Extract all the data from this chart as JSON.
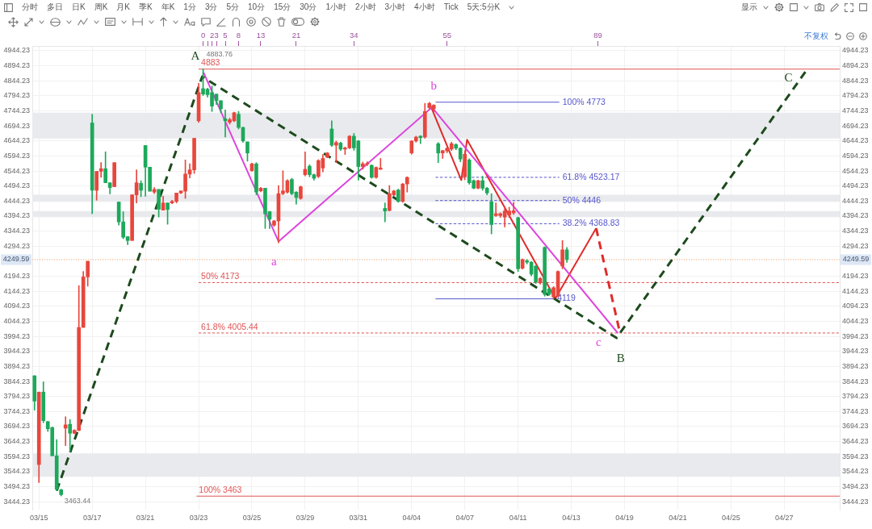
{
  "chart_data": {
    "type": "candlestick",
    "categories": [
      null,
      "03/15",
      null,
      null,
      null,
      null,
      null,
      null,
      null,
      null,
      null,
      null,
      null,
      "03/17",
      null,
      null,
      null,
      null,
      null,
      null,
      null,
      null,
      null,
      null,
      null,
      "03/21",
      null,
      null,
      null,
      null,
      null,
      null,
      null,
      null,
      null,
      null,
      null,
      "03/23",
      null,
      null,
      null,
      null,
      null,
      null,
      null,
      null,
      null,
      null,
      null,
      "03/25",
      null,
      null,
      null,
      null,
      null,
      null,
      null,
      null,
      null,
      null,
      null,
      "03/29",
      null,
      null,
      null,
      null,
      null,
      null,
      null,
      null,
      null,
      null,
      null,
      "03/31",
      null,
      null,
      null,
      null,
      null,
      null,
      null,
      null,
      null,
      null,
      null,
      "04/04",
      null,
      null,
      null,
      null,
      null,
      null,
      null,
      null,
      null,
      null,
      null,
      "04/07",
      null,
      null,
      null,
      null,
      null,
      null,
      null,
      null,
      null,
      null,
      null,
      "04/11",
      null,
      null,
      null,
      null,
      null,
      null,
      null,
      null,
      null,
      null,
      null,
      "04/13",
      null,
      null,
      null,
      null,
      null,
      null,
      null,
      null,
      null,
      null,
      null,
      "04/19",
      null,
      null,
      null,
      null,
      null,
      null,
      null,
      null,
      null,
      null,
      null,
      "04/21",
      null,
      null,
      null,
      null,
      null,
      null,
      null,
      null,
      null,
      null,
      null,
      "04/25",
      null,
      null,
      null,
      null,
      null,
      null,
      null,
      null,
      null,
      null,
      null,
      "04/27",
      null,
      null,
      null,
      null,
      null,
      null,
      null,
      null,
      null,
      null,
      null,
      null
    ],
    "ohlc": [
      [
        3863,
        3864,
        3749,
        3779
      ],
      [
        3568,
        3809,
        3508,
        3809
      ],
      [
        3809,
        3843,
        3707,
        3714
      ],
      [
        3711,
        3711,
        3678,
        3687
      ],
      [
        3691,
        3693,
        3597,
        3597
      ],
      [
        3597,
        3651,
        3481,
        3486
      ],
      [
        3484,
        3486,
        3463.44,
        3468
      ],
      [
        3689,
        3727,
        3631,
        3700
      ],
      [
        3702,
        3718,
        3611,
        3672
      ],
      [
        3672,
        3684,
        3670,
        3682
      ],
      [
        3682,
        4163,
        3680,
        4024
      ],
      [
        4024,
        4210,
        4024,
        4192
      ],
      [
        4192,
        4244,
        4161,
        4244
      ],
      [
        4704,
        4733,
        4402,
        4480
      ],
      [
        4480,
        4543,
        4447,
        4543
      ],
      [
        4543,
        4572,
        4523,
        4552
      ],
      [
        4552,
        4608,
        4505,
        4505
      ],
      [
        4505,
        4505,
        4468,
        4489
      ],
      [
        4492,
        4572,
        4492,
        4572
      ],
      [
        4441,
        4441,
        4364,
        4375
      ],
      [
        4375,
        4409,
        4319,
        4324
      ],
      [
        4326,
        4326,
        4299,
        4313
      ],
      [
        4313,
        4465,
        4313,
        4465
      ],
      [
        4465,
        4548,
        4438,
        4505
      ],
      [
        4503,
        4512,
        4459,
        4480
      ],
      [
        4629,
        4629,
        4460,
        4557
      ],
      [
        4557,
        4557,
        4477,
        4477
      ],
      [
        4474,
        4489,
        4469,
        4483
      ],
      [
        4483,
        4483,
        4391,
        4417
      ],
      [
        4414,
        4460,
        4414,
        4438
      ],
      [
        4438,
        4438,
        4367,
        4416
      ],
      [
        4438,
        4447,
        4435,
        4443
      ],
      [
        4443,
        4471,
        4438,
        4471
      ],
      [
        4471,
        4478,
        4469,
        4478
      ],
      [
        4477,
        4581,
        4453,
        4534
      ],
      [
        4534,
        4568,
        4521,
        4548
      ],
      [
        4548,
        4653,
        4536,
        4653
      ],
      [
        4711,
        4836,
        4706,
        4805
      ],
      [
        4818,
        4883.76,
        4795,
        4800
      ],
      [
        4816,
        4820,
        4790,
        4798
      ],
      [
        4805,
        4827,
        4742,
        4760
      ],
      [
        4800,
        4800,
        4765,
        4778
      ],
      [
        4778,
        4778,
        4738,
        4751
      ],
      [
        4718,
        4747,
        4657,
        4711
      ],
      [
        4706,
        4720,
        4700,
        4715
      ],
      [
        4711,
        4740,
        4708,
        4738
      ],
      [
        4733,
        4742,
        4684,
        4689
      ],
      [
        4689,
        4690,
        4640,
        4644
      ],
      [
        4641,
        4641,
        4577,
        4604
      ],
      [
        4545,
        4570,
        4543,
        4568
      ],
      [
        4568,
        4572,
        4465,
        4474
      ],
      [
        4478,
        4490,
        4475,
        4487
      ],
      [
        4487,
        4487,
        4353,
        4402
      ],
      [
        4409,
        4410,
        4353,
        4384
      ],
      [
        4364,
        4380,
        4360,
        4378
      ],
      [
        4378,
        4496,
        4305,
        4469
      ],
      [
        4469,
        4545,
        4465,
        4478
      ],
      [
        4474,
        4515,
        4470,
        4512
      ],
      [
        4516,
        4520,
        4465,
        4469
      ],
      [
        4474,
        4476,
        4434,
        4456
      ],
      [
        4453,
        4494,
        4450,
        4492
      ],
      [
        4532,
        4608,
        4528,
        4550
      ],
      [
        4560,
        4565,
        4525,
        4532
      ],
      [
        4532,
        4534,
        4514,
        4520
      ],
      [
        4526,
        4582,
        4522,
        4579
      ],
      [
        4554,
        4599,
        4541,
        4586
      ],
      [
        4590,
        4606,
        4588,
        4604
      ],
      [
        4684,
        4711,
        4626,
        4630
      ],
      [
        4630,
        4644,
        4572,
        4639
      ],
      [
        4637,
        4640,
        4612,
        4617
      ],
      [
        4617,
        4624,
        4599,
        4621
      ],
      [
        4621,
        4662,
        4618,
        4660
      ],
      [
        4660,
        4669,
        4613,
        4621
      ],
      [
        4644,
        4646,
        4514,
        4559
      ],
      [
        4559,
        4574,
        4550,
        4568
      ],
      [
        4567,
        4575,
        4562,
        4569
      ],
      [
        4563,
        4565,
        4520,
        4523
      ],
      [
        4523,
        4558,
        4520,
        4556
      ],
      [
        4550,
        4586,
        4549,
        4554
      ],
      [
        4420,
        4438,
        4375,
        4411
      ],
      [
        4413,
        4496,
        4411,
        4469
      ],
      [
        4465,
        4480,
        4462,
        4478
      ],
      [
        4481,
        4484,
        4440,
        4443
      ],
      [
        4443,
        4503,
        4440,
        4501
      ],
      [
        4501,
        4525,
        4474,
        4523
      ],
      [
        4604,
        4645,
        4600,
        4644
      ],
      [
        4644,
        4660,
        4640,
        4657
      ],
      [
        4660,
        4662,
        4635,
        4655
      ],
      [
        4657,
        4769,
        4653,
        4742
      ],
      [
        4755,
        4773,
        4750,
        4769
      ],
      [
        4751,
        4765,
        4740,
        4763
      ],
      [
        4635,
        4639,
        4572,
        4604
      ],
      [
        4604,
        4613,
        4586,
        4612
      ],
      [
        4611,
        4622,
        4605,
        4620
      ],
      [
        4617,
        4640,
        4612,
        4635
      ],
      [
        4632,
        4635,
        4615,
        4620
      ],
      [
        4620,
        4622,
        4575,
        4584
      ],
      [
        4525,
        4610,
        4515,
        4600
      ],
      [
        4581,
        4585,
        4500,
        4505
      ],
      [
        4512,
        4515,
        4485,
        4487
      ],
      [
        4487,
        4514,
        4485,
        4512
      ],
      [
        4512,
        4527,
        4480,
        4487
      ],
      [
        4487,
        4490,
        4465,
        4471
      ],
      [
        4442,
        4469,
        4335,
        4366
      ],
      [
        4396,
        4438,
        4393,
        4402
      ],
      [
        4396,
        4405,
        4390,
        4402
      ],
      [
        4391,
        4424,
        4358,
        4411
      ],
      [
        4398,
        4424,
        4390,
        4411
      ],
      [
        4405,
        4440,
        4400,
        4412
      ],
      [
        4389,
        4391,
        4210,
        4219
      ],
      [
        4221,
        4252,
        4218,
        4250
      ],
      [
        4246,
        4250,
        4235,
        4241
      ],
      [
        4241,
        4243,
        4195,
        4201
      ],
      [
        4228,
        4230,
        4170,
        4174
      ],
      [
        4172,
        4190,
        4168,
        4187
      ],
      [
        4290,
        4292,
        4128,
        4134
      ],
      [
        4152,
        4155,
        4130,
        4134
      ],
      [
        4125,
        4160,
        4119,
        4156
      ],
      [
        4129,
        4212,
        4125,
        4210
      ],
      [
        4228,
        4313,
        4219,
        4282
      ],
      [
        4282,
        4290,
        4240,
        4249.59
      ],
      null,
      null,
      null,
      null,
      null,
      null,
      null,
      null,
      null,
      null,
      null,
      null,
      null,
      null,
      null,
      null,
      null,
      null,
      null,
      null,
      null,
      null,
      null,
      null,
      null,
      null,
      null,
      null,
      null,
      null,
      null,
      null,
      null,
      null,
      null,
      null,
      null,
      null,
      null,
      null,
      null,
      null,
      null,
      null,
      null,
      null,
      null,
      null,
      null,
      null,
      null,
      null,
      null,
      null,
      null,
      null,
      null,
      null,
      null,
      null,
      null
    ],
    "colors": [
      "#1da85b",
      "#e8463d",
      "#1da85b",
      "#1da85b",
      "#1da85b",
      "#1da85b",
      "#1da85b",
      "#e8463d",
      "#1da85b",
      "#e8463d",
      "#e8463d",
      "#e8463d",
      "#e8463d",
      "#1da85b",
      "#e8463d",
      "#e8463d",
      "#1da85b",
      "#1da85b",
      "#e8463d",
      "#1da85b",
      "#1da85b",
      "#1da85b",
      "#e8463d",
      "#e8463d",
      "#1da85b",
      "#1da85b",
      "#1da85b",
      "#e8463d",
      "#1da85b",
      "#e8463d",
      "#1da85b",
      "#e8463d",
      "#e8463d",
      "#e8463d",
      "#e8463d",
      "#e8463d",
      "#e8463d",
      "#e8463d",
      "#1da85b",
      "#1da85b",
      "#1da85b",
      "#1da85b",
      "#1da85b",
      "#1da85b",
      "#e8463d",
      "#e8463d",
      "#1da85b",
      "#1da85b",
      "#1da85b",
      "#e8463d",
      "#1da85b",
      "#e8463d",
      "#1da85b",
      "#1da85b",
      "#e8463d",
      "#e8463d",
      "#e8463d",
      "#e8463d",
      "#1da85b",
      "#1da85b",
      "#e8463d",
      "#e8463d",
      "#1da85b",
      "#1da85b",
      "#e8463d",
      "#e8463d",
      "#e8463d",
      "#1da85b",
      "#e8463d",
      "#1da85b",
      "#e8463d",
      "#e8463d",
      "#1da85b",
      "#1da85b",
      "#e8463d",
      "#e8463d",
      "#1da85b",
      "#e8463d",
      "#e8463d",
      "#1da85b",
      "#e8463d",
      "#e8463d",
      "#1da85b",
      "#e8463d",
      "#e8463d",
      "#e8463d",
      "#e8463d",
      "#1da85b",
      "#e8463d",
      "#e8463d",
      "#e8463d",
      "#1da85b",
      "#e8463d",
      "#e8463d",
      "#e8463d",
      "#1da85b",
      "#1da85b",
      "#e8463d",
      "#1da85b",
      "#1da85b",
      "#e8463d",
      "#1da85b",
      "#1da85b",
      "#1da85b",
      "#e8463d",
      "#e8463d",
      "#e8463d",
      "#e8463d",
      "#e8463d",
      "#1da85b",
      "#e8463d",
      "#1da85b",
      "#1da85b",
      "#1da85b",
      "#e8463d",
      "#1da85b",
      "#1da85b",
      "#e8463d",
      "#e8463d",
      "#e8463d",
      "#1da85b",
      null,
      null,
      null,
      null,
      null,
      null,
      null,
      null,
      null,
      null,
      null,
      null,
      null,
      null,
      null,
      null,
      null,
      null,
      null,
      null,
      null,
      null,
      null,
      null,
      null,
      null,
      null,
      null,
      null,
      null,
      null,
      null,
      null,
      null,
      null,
      null,
      null,
      null,
      null,
      null,
      null,
      null,
      null,
      null,
      null,
      null,
      null,
      null,
      null,
      null,
      null,
      null,
      null,
      null,
      null,
      null,
      null,
      null,
      null,
      null,
      null
    ],
    "value_labels": [
      null,
      null,
      null,
      null,
      null,
      null,
      "3463.44",
      null,
      null,
      null,
      null,
      null,
      null,
      null,
      null,
      null,
      null,
      null,
      null,
      null,
      null,
      null,
      null,
      null,
      null,
      null,
      null,
      null,
      null,
      null,
      null,
      null,
      null,
      null,
      null,
      null,
      null,
      null,
      "4883.76",
      null,
      null,
      null,
      null,
      null,
      null,
      null,
      null,
      null,
      null,
      null,
      null,
      null,
      null,
      null,
      null,
      null,
      null,
      null,
      null,
      null,
      null,
      null,
      null,
      null,
      null,
      null,
      null,
      null,
      null,
      null,
      null,
      null,
      null,
      null,
      null,
      null,
      null,
      null,
      null,
      null,
      null,
      null,
      null,
      null,
      null,
      null,
      null,
      null,
      null,
      null,
      null,
      null,
      null,
      null,
      null,
      null,
      null,
      null,
      null,
      null,
      null,
      null,
      null,
      null,
      null,
      null,
      null,
      null,
      null,
      null,
      null,
      null,
      null,
      null,
      null,
      null,
      null,
      null,
      null,
      null,
      null,
      null,
      null,
      null,
      null,
      null,
      null,
      null,
      null,
      null,
      null,
      null,
      null,
      null,
      null,
      null,
      null,
      null,
      null,
      null,
      null,
      null,
      null,
      null,
      null,
      null,
      null,
      null,
      null,
      null,
      null,
      null,
      null,
      null,
      null,
      null,
      null,
      null,
      null,
      null,
      null,
      null,
      null,
      null,
      null,
      null,
      null,
      null,
      null,
      null,
      null,
      null,
      null,
      null,
      null,
      null,
      null,
      null,
      null,
      null,
      null,
      null
    ],
    "series": [
      {
        "type": "line",
        "axis": "x2",
        "x": [
          -33,
          -0.2,
          93.2,
          136.3
        ],
        "values": [
          3481,
          4858,
          3989,
          4885
        ],
        "value_labels": [
          null,
          "A",
          "B",
          "C"
        ],
        "color": "#1d4a1d",
        "line_style": "dashed"
      },
      {
        "type": "line",
        "axis": "x2",
        "x": [
          0.1,
          17,
          51.6,
          93.5
        ],
        "values": [
          4872,
          4310,
          4756,
          4005
        ],
        "value_labels": [
          null,
          "a",
          "b",
          "c"
        ],
        "color": "#dd44dd",
        "line_style": "solid"
      },
      {
        "type": "line",
        "axis": "x2",
        "x": [
          51.2,
          58.2,
          59.5,
          79.4,
          88.6
        ],
        "values": [
          4764,
          4514,
          4648,
          4120,
          4354
        ],
        "color": "#e02b2b",
        "line_style": "solid"
      },
      {
        "type": "line",
        "axis": "x2",
        "x": [
          88.6,
          93.9
        ],
        "values": [
          4354,
          4010
        ],
        "color": "#e02b2b",
        "line_style": "dashed"
      },
      {
        "type": "line",
        "axis": "x2",
        "x": [
          -1,
          143.5
        ],
        "values": [
          4883,
          4883
        ],
        "value_labels": [
          "4883",
          null
        ],
        "color": "#e05555",
        "line_style": "solid"
      },
      {
        "type": "line",
        "axis": "x2",
        "x": [
          -1,
          143.5
        ],
        "values": [
          4173,
          4173
        ],
        "value_labels": [
          "50% 4173",
          null
        ],
        "color": "#e05555",
        "line_style": "dashed"
      },
      {
        "type": "line",
        "axis": "x2",
        "x": [
          -1,
          143.5
        ],
        "values": [
          4005.44,
          4005.44
        ],
        "value_labels": [
          "61.8% 4005.44",
          null
        ],
        "color": "#e05555",
        "line_style": "dashed"
      },
      {
        "type": "line",
        "axis": "x2",
        "x": [
          -1.5,
          143.5
        ],
        "values": [
          3463,
          3463
        ],
        "value_labels": [
          "100% 3463",
          null
        ],
        "color": "#e05555",
        "line_style": "solid"
      },
      {
        "type": "line",
        "axis": "x2",
        "x": [
          52.4,
          80.3
        ],
        "values": [
          4773,
          4773
        ],
        "value_labels": [
          null,
          "100% 4773"
        ],
        "color": "#5656cc",
        "line_style": "solid"
      },
      {
        "type": "line",
        "axis": "x2",
        "x": [
          52.4,
          80.3
        ],
        "values": [
          4523.17,
          4523.17
        ],
        "value_labels": [
          null,
          "61.8% 4523.17"
        ],
        "color": "#5656cc",
        "line_style": "dashed"
      },
      {
        "type": "line",
        "axis": "x2",
        "x": [
          52.4,
          80.3
        ],
        "values": [
          4446,
          4446
        ],
        "value_labels": [
          null,
          "50% 4446"
        ],
        "color": "#5656cc",
        "line_style": "dashed"
      },
      {
        "type": "line",
        "axis": "x2",
        "x": [
          52.4,
          80.3
        ],
        "values": [
          4368.83,
          4368.83
        ],
        "value_labels": [
          null,
          "38.2% 4368.83"
        ],
        "color": "#5656cc",
        "line_style": "dashed"
      },
      {
        "type": "line",
        "axis": "x2",
        "x": [
          52.4,
          79.1
        ],
        "values": [
          4119,
          4119
        ],
        "value_labels": [
          null,
          "4119"
        ],
        "color": "#5656cc",
        "line_style": "solid"
      }
    ],
    "x2lim": [
      -38.5,
      143.5
    ],
    "x2ticks": [
      0,
      {
        "value": 1,
        "label": null
      },
      2,
      3,
      5,
      8,
      13,
      21,
      34,
      55,
      89
    ],
    "ylim": [
      3418,
      4960
    ],
    "yticks": [
      3444.23,
      3494.23,
      3544.23,
      3594.23,
      3644.23,
      3694.23,
      3744.23,
      3794.23,
      3844.23,
      3894.23,
      3944.23,
      3994.23,
      4044.23,
      4094.23,
      4144.23,
      4194.23,
      4294.23,
      4344.23,
      4394.23,
      4444.23,
      4494.23,
      4544.23,
      4594.23,
      4644.23,
      4694.23,
      4744.23,
      4794.23,
      4844.23,
      4894.23,
      4944.23
    ],
    "y2lim": [
      3418,
      4960
    ],
    "y2ticks": [
      3444.23,
      3494.23,
      3544.23,
      3594.23,
      3644.23,
      3694.23,
      3744.23,
      3794.23,
      3844.23,
      3894.23,
      3944.23,
      3994.23,
      4044.23,
      4094.23,
      4144.23,
      4194.23,
      4294.23,
      4344.23,
      4394.23,
      4444.23,
      4494.23,
      4544.23,
      4594.23,
      4644.23,
      4694.23,
      4744.23,
      4794.23,
      4844.23,
      4894.23,
      4944.23
    ],
    "grid": true,
    "ref_lines": [
      {
        "axis": "y",
        "value": 4249.59,
        "label": "4249.59",
        "color": "#f2a46e",
        "line_style": "dotted"
      }
    ],
    "bands": [
      {
        "axis": "y",
        "from": 3527,
        "to": 3605,
        "color": "#e8eaed"
      },
      {
        "axis": "y",
        "from": 4652,
        "to": 4738,
        "color": "#e8eaed"
      },
      {
        "axis": "y",
        "from": 4442,
        "to": 4465,
        "color": "#e8eaed"
      },
      {
        "axis": "y",
        "from": 4391,
        "to": 4411,
        "color": "#e8eaed"
      }
    ],
    "annotations": [
      "分时",
      "多日",
      "日K",
      "周K",
      "月K",
      "季K",
      "年K",
      "1分",
      "3分",
      "5分",
      "10分",
      "15分",
      "30分",
      "1小时",
      "2小时",
      "3小时",
      "4小时",
      "Tick",
      "5天:5分K",
      "显示",
      "不复权"
    ]
  }
}
